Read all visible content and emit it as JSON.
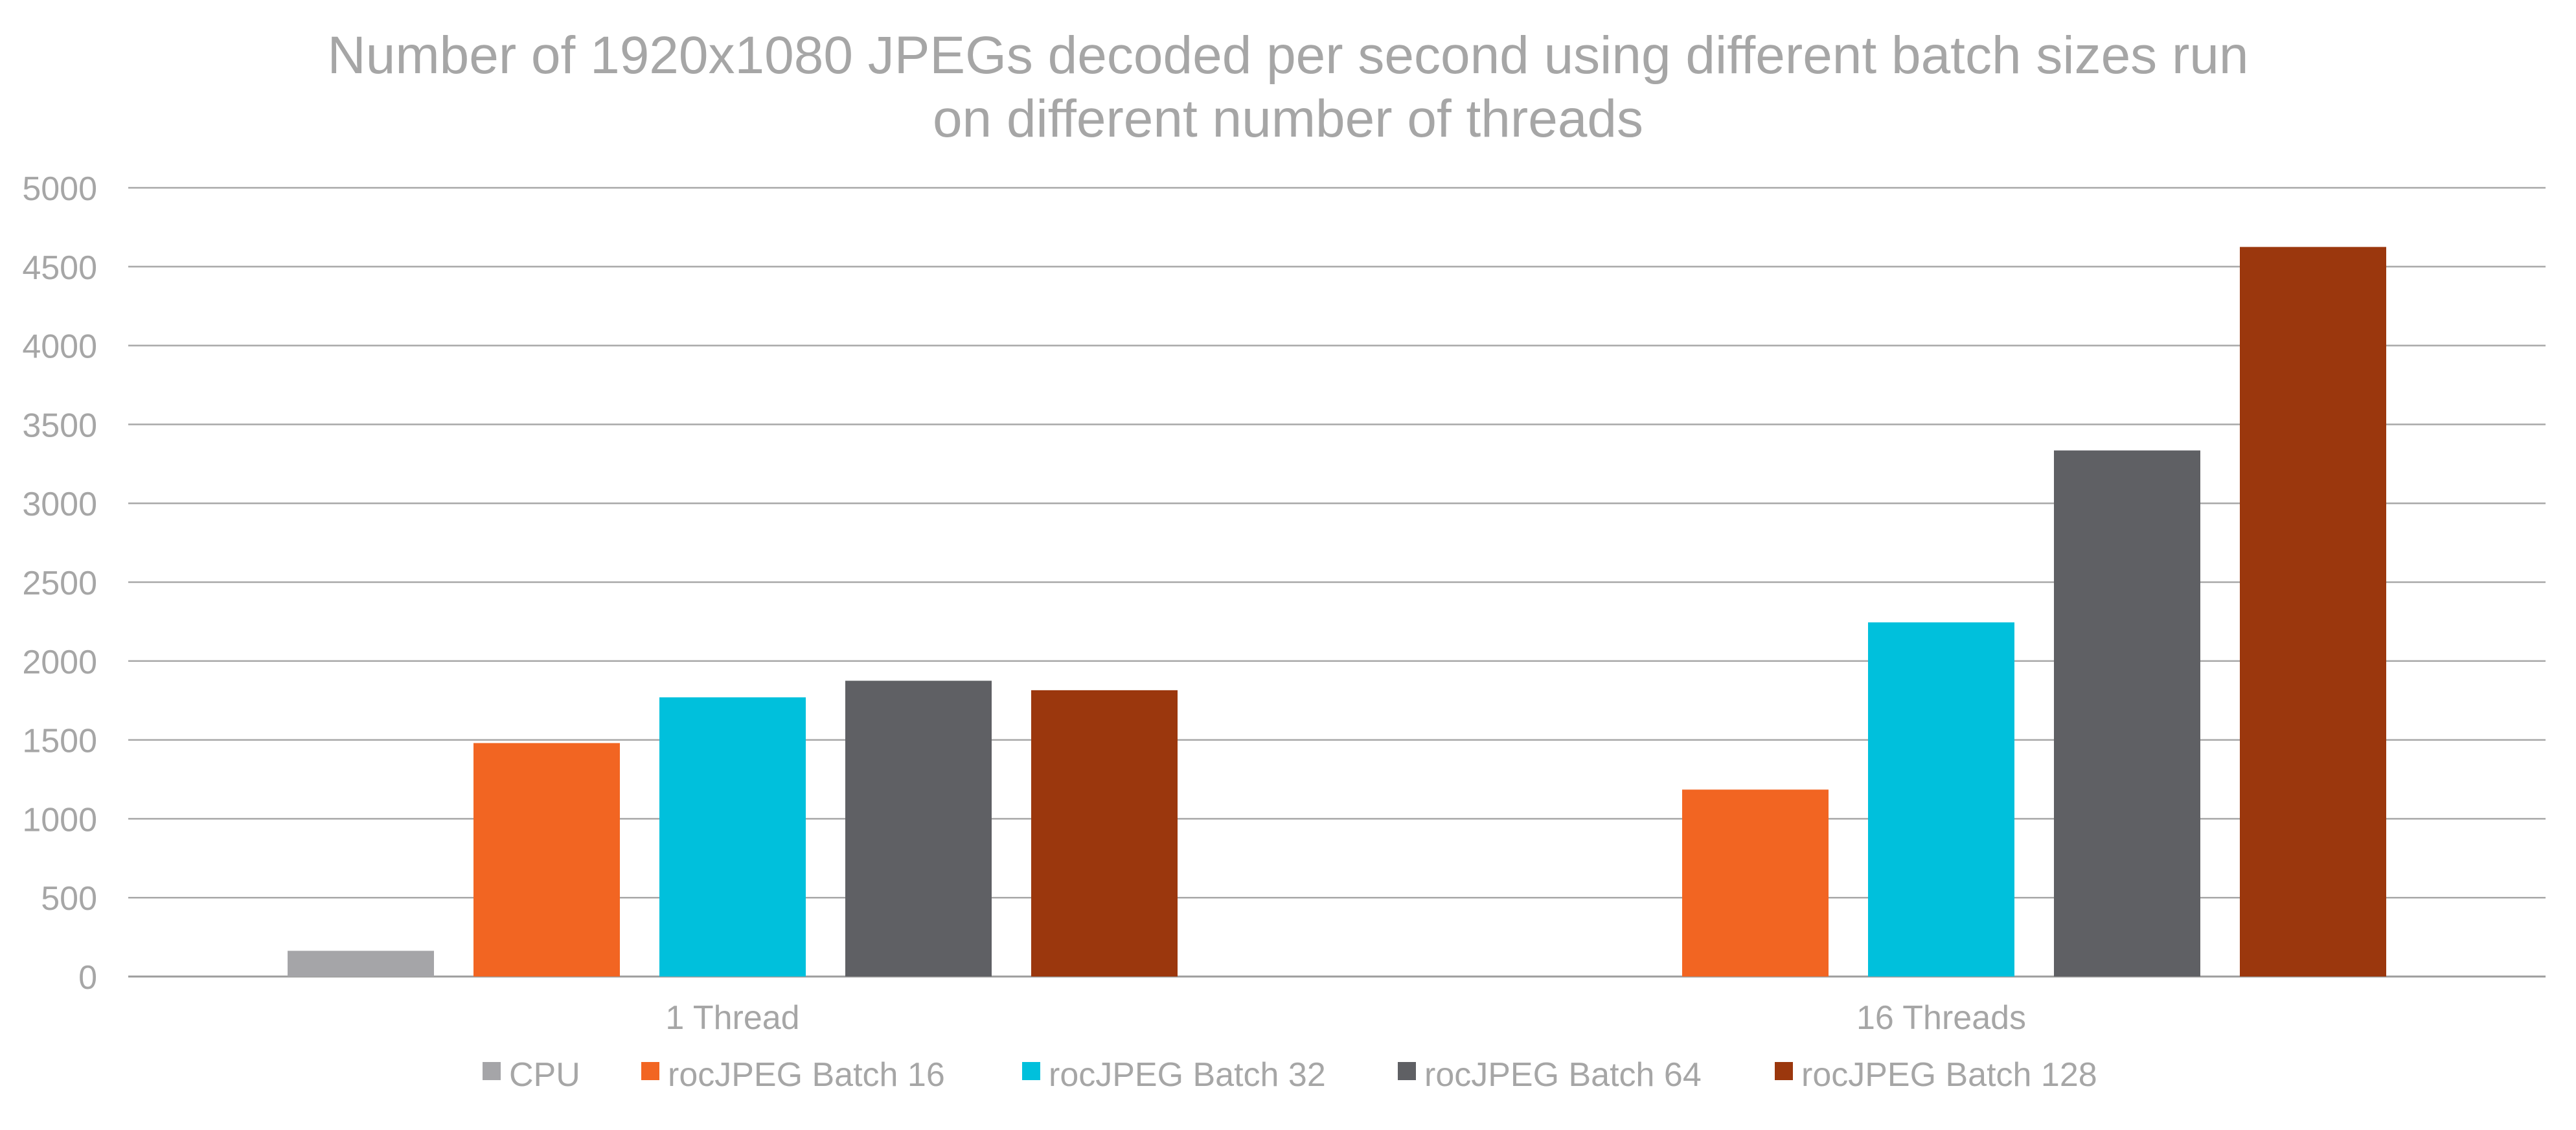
{
  "chart_data": {
    "type": "bar",
    "title": [
      "Number of 1920x1080 JPEGs decoded per second using different batch sizes run",
      "on different number of threads"
    ],
    "categories": [
      "1 Thread",
      "16 Threads"
    ],
    "series": [
      {
        "name": "CPU",
        "color": "#a5a5a8",
        "values": [
          163,
          null
        ]
      },
      {
        "name": "rocJPEG Batch 16",
        "color": "#f26522",
        "values": [
          1480,
          1185
        ]
      },
      {
        "name": "rocJPEG Batch 32",
        "color": "#00c0dc",
        "values": [
          1770,
          2245
        ]
      },
      {
        "name": "rocJPEG Batch 64",
        "color": "#5f6064",
        "values": [
          1875,
          3335
        ]
      },
      {
        "name": "rocJPEG Batch 128",
        "color": "#9b370d",
        "values": [
          1815,
          4625
        ]
      }
    ],
    "ylim": [
      0,
      5000
    ],
    "yticks": [
      "0",
      "500",
      "1000",
      "1500",
      "2000",
      "2500",
      "3000",
      "3500",
      "4000",
      "4500",
      "5000"
    ],
    "grid": true,
    "legend_position": "bottom"
  }
}
